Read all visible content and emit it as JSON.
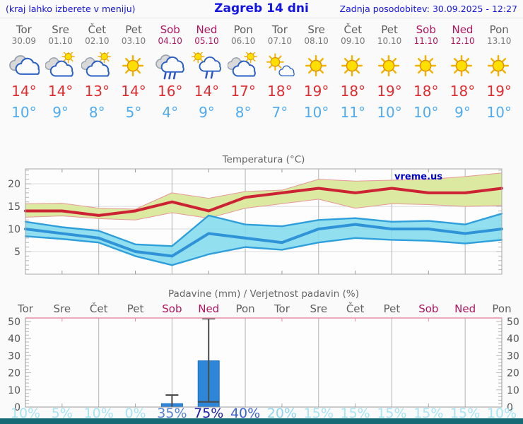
{
  "header": {
    "hint": "(kraj lahko izberete v meniju)",
    "title": "Zagreb 14 dni",
    "updated": "Zadnja posodobitev: 30.09.2025 - 12:27"
  },
  "units": {
    "deg": "°"
  },
  "colors": {
    "header_blue": "#1414e6",
    "day_gray": "#5f5f5f",
    "weekend_red": "#b1135e",
    "tmax_red": "#e02d32",
    "tmin_blue": "#4fabef",
    "footer_teal": "#166a76",
    "watermark_blue": "#0000cc"
  },
  "days": [
    {
      "name": "Tor",
      "date": "30.09",
      "weekend": false,
      "icon": "cloudy",
      "tmax": 14,
      "tmin": 10,
      "prob": "10%",
      "prob_color": "#a6e3f5"
    },
    {
      "name": "Sre",
      "date": "01.10",
      "weekend": false,
      "icon": "partly-cloudy",
      "tmax": 14,
      "tmin": 9,
      "prob": "5%",
      "prob_color": "#a6e3f5"
    },
    {
      "name": "Čet",
      "date": "02.10",
      "weekend": false,
      "icon": "partly-cloudy",
      "tmax": 13,
      "tmin": 8,
      "prob": "10%",
      "prob_color": "#a6e3f5"
    },
    {
      "name": "Pet",
      "date": "03.10",
      "weekend": false,
      "icon": "sunny",
      "tmax": 14,
      "tmin": 5,
      "prob": "0%",
      "prob_color": "#a6e3f5"
    },
    {
      "name": "Sob",
      "date": "04.10",
      "weekend": true,
      "icon": "rain",
      "tmax": 16,
      "tmin": 4,
      "prob": "35%",
      "prob_color": "#5583d2"
    },
    {
      "name": "Ned",
      "date": "05.10",
      "weekend": true,
      "icon": "sun-shower",
      "tmax": 14,
      "tmin": 9,
      "prob": "75%",
      "prob_color": "#1c1ba8"
    },
    {
      "name": "Pon",
      "date": "06.10",
      "weekend": false,
      "icon": "partly-cloudy",
      "tmax": 17,
      "tmin": 8,
      "prob": "40%",
      "prob_color": "#3c63d2"
    },
    {
      "name": "Tor",
      "date": "07.10",
      "weekend": false,
      "icon": "mostly-sunny",
      "tmax": 18,
      "tmin": 7,
      "prob": "20%",
      "prob_color": "#8ed5ef"
    },
    {
      "name": "Sre",
      "date": "08.10",
      "weekend": false,
      "icon": "sunny",
      "tmax": 19,
      "tmin": 10,
      "prob": "15%",
      "prob_color": "#a6e3f5"
    },
    {
      "name": "Čet",
      "date": "09.10",
      "weekend": false,
      "icon": "sunny",
      "tmax": 18,
      "tmin": 11,
      "prob": "15%",
      "prob_color": "#a6e3f5"
    },
    {
      "name": "Pet",
      "date": "10.10",
      "weekend": false,
      "icon": "sunny",
      "tmax": 19,
      "tmin": 10,
      "prob": "15%",
      "prob_color": "#a6e3f5"
    },
    {
      "name": "Sob",
      "date": "11.10",
      "weekend": true,
      "icon": "sunny",
      "tmax": 18,
      "tmin": 10,
      "prob": "15%",
      "prob_color": "#a6e3f5"
    },
    {
      "name": "Ned",
      "date": "12.10",
      "weekend": true,
      "icon": "sunny",
      "tmax": 18,
      "tmin": 9,
      "prob": "15%",
      "prob_color": "#a6e3f5"
    },
    {
      "name": "Pon",
      "date": "13.10",
      "weekend": false,
      "icon": "sunny",
      "tmax": 19,
      "tmin": 10,
      "prob": "10%",
      "prob_color": "#a6e3f5"
    }
  ],
  "chart_data": [
    {
      "type": "line",
      "title": "Temperatura (°C)",
      "watermark": "vreme.us",
      "x_labels": [
        "Tor",
        "Sre",
        "Čet",
        "Pet",
        "Sob",
        "Ned",
        "Pon",
        "Tor",
        "Sre",
        "Čet",
        "Pet",
        "Sob",
        "Ned",
        "Pon"
      ],
      "ylim": [
        0,
        23.3
      ],
      "yticks": [
        5,
        10,
        15,
        20
      ],
      "grid": true,
      "legend": "none",
      "series": [
        {
          "name": "tmax",
          "color": "#cc2233",
          "values": [
            14,
            14,
            13,
            14,
            16,
            14,
            17,
            18,
            19,
            18,
            19,
            18,
            18,
            19
          ]
        },
        {
          "name": "tmax_range_hi",
          "color": "#e59898",
          "fill": "#dce9a0",
          "values": [
            15.6,
            15.7,
            14.6,
            14.4,
            18,
            16.8,
            18.3,
            18.6,
            21,
            20.6,
            20.8,
            21,
            21.6,
            22.4
          ]
        },
        {
          "name": "tmax_range_lo",
          "color": "#e59898",
          "values": [
            12.6,
            12.9,
            12.3,
            12,
            13.6,
            12.4,
            14.6,
            15.6,
            16.6,
            14.6,
            15.6,
            15.4,
            15,
            15.2
          ]
        },
        {
          "name": "tmin",
          "color": "#2f93d8",
          "values": [
            10,
            9,
            8,
            5,
            4,
            9,
            8,
            7,
            10,
            11,
            10,
            10,
            9,
            10
          ]
        },
        {
          "name": "tmin_range_hi",
          "color": "#2f9fdc",
          "fill": "#7fd9ec",
          "values": [
            11.6,
            10.4,
            9.6,
            6.6,
            6.2,
            13,
            11,
            10.6,
            12,
            12.4,
            11.6,
            11.8,
            11,
            13.4
          ]
        },
        {
          "name": "tmin_range_lo",
          "color": "#2f9fdc",
          "values": [
            8.4,
            7.8,
            7,
            4,
            2,
            4.4,
            6,
            5.4,
            7,
            8,
            7.6,
            7.4,
            6.8,
            7.6
          ]
        }
      ]
    },
    {
      "type": "bar",
      "title": "Padavine (mm) / Verjetnost padavin (%)",
      "categories": [
        "Tor",
        "Sre",
        "Čet",
        "Pet",
        "Sob",
        "Ned",
        "Pon",
        "Tor",
        "Sre",
        "Čet",
        "Pet",
        "Sob",
        "Ned",
        "Pon"
      ],
      "values": [
        0,
        0,
        0,
        0,
        2,
        27,
        0,
        0,
        0,
        0,
        0,
        0,
        0,
        0
      ],
      "whiskers": [
        null,
        null,
        null,
        null,
        {
          "low": 0,
          "high": 7
        },
        {
          "low": 3,
          "high": 52
        },
        null,
        null,
        null,
        null,
        null,
        null,
        null,
        null
      ],
      "probabilities": [
        "10%",
        "5%",
        "10%",
        "0%",
        "35%",
        "75%",
        "40%",
        "20%",
        "15%",
        "15%",
        "15%",
        "15%",
        "15%",
        "10%"
      ],
      "ylim": [
        0,
        52
      ],
      "yticks": [
        0,
        10,
        20,
        30,
        40,
        50
      ],
      "bar_color": "#2e86d9",
      "bar_edge_color": "#1d6fc2",
      "whisker_color": "#4a4a4a",
      "top_axis_color": "#e78fa3"
    }
  ]
}
